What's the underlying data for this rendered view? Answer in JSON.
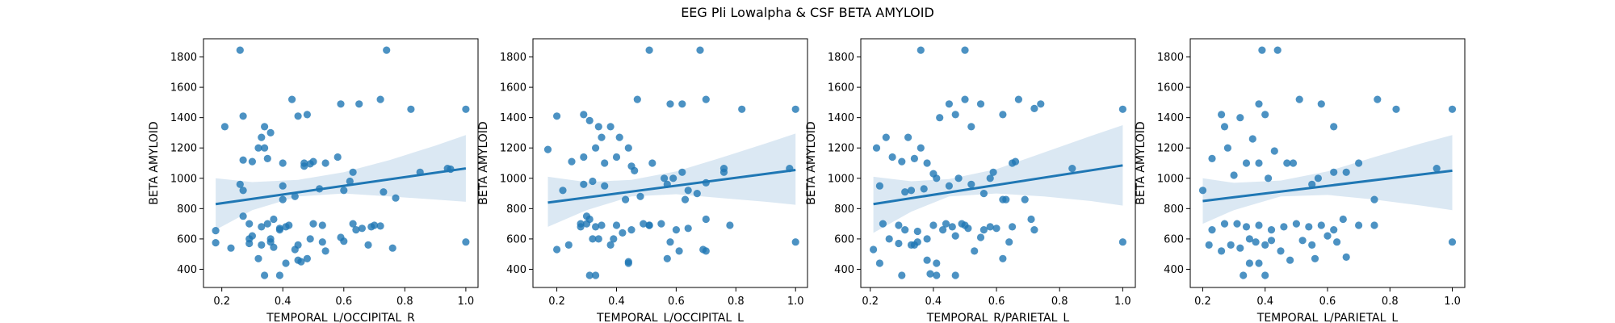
{
  "figure": {
    "title": "EEG Pli Lowalpha & CSF BETA AMYLOID",
    "point_color": "#1f77b4",
    "line_color": "#1f77b4",
    "band_color": "#a6c6e2"
  },
  "chart_data": [
    {
      "type": "scatter",
      "xlabel": "TEMPORAL_L/OCCIPITAL_R",
      "ylabel": "BETA AMYLOID",
      "xlim": [
        0.14,
        1.04
      ],
      "ylim": [
        280,
        1920
      ],
      "xticks": [
        0.2,
        0.4,
        0.6,
        0.8,
        1.0
      ],
      "yticks": [
        400,
        600,
        800,
        1000,
        1200,
        1400,
        1600,
        1800
      ],
      "grid": false,
      "regression": {
        "x": [
          0.18,
          1.0
        ],
        "y": [
          830,
          1065
        ]
      },
      "ci_band": {
        "x": [
          0.18,
          0.3,
          0.45,
          0.6,
          0.75,
          0.9,
          1.0
        ],
        "lower": [
          660,
          790,
          880,
          900,
          880,
          860,
          845
        ],
        "upper": [
          1000,
          975,
          990,
          1040,
          1120,
          1215,
          1285
        ]
      },
      "points": {
        "x": [
          0.26,
          0.74,
          0.43,
          0.72,
          0.59,
          0.65,
          0.82,
          1.0,
          0.27,
          0.45,
          0.48,
          0.21,
          0.34,
          0.36,
          0.33,
          0.34,
          0.27,
          0.3,
          0.32,
          0.35,
          0.4,
          0.47,
          0.49,
          0.5,
          0.58,
          0.47,
          0.26,
          0.27,
          0.4,
          0.4,
          0.44,
          0.52,
          0.54,
          0.6,
          0.63,
          0.73,
          0.77,
          0.85,
          0.94,
          0.95,
          0.62,
          0.27,
          0.29,
          0.35,
          0.37,
          0.33,
          0.39,
          0.42,
          0.5,
          0.53,
          0.63,
          0.66,
          0.69,
          0.72,
          0.29,
          0.36,
          0.39,
          0.41,
          0.45,
          0.49,
          0.53,
          0.6,
          0.64,
          0.7,
          0.18,
          0.23,
          0.29,
          0.33,
          0.36,
          0.37,
          0.44,
          0.46,
          0.48,
          0.54,
          0.59,
          0.68,
          0.76,
          1.0,
          0.34,
          0.32,
          0.39,
          0.41,
          0.45,
          0.18,
          0.3
        ],
        "y": [
          1845,
          1845,
          1520,
          1520,
          1490,
          1490,
          1455,
          1455,
          1410,
          1410,
          1420,
          1340,
          1340,
          1300,
          1270,
          1200,
          1120,
          1110,
          1200,
          1130,
          1100,
          1100,
          1095,
          1110,
          1140,
          1080,
          960,
          920,
          950,
          860,
          880,
          930,
          1100,
          920,
          1040,
          910,
          870,
          1040,
          1065,
          1060,
          980,
          750,
          700,
          700,
          730,
          680,
          670,
          690,
          700,
          690,
          700,
          670,
          680,
          685,
          600,
          580,
          660,
          680,
          560,
          600,
          580,
          585,
          660,
          690,
          655,
          540,
          570,
          560,
          600,
          545,
          530,
          450,
          470,
          520,
          610,
          560,
          540,
          580,
          360,
          470,
          360,
          440,
          460,
          575,
          620
        ]
      }
    },
    {
      "type": "scatter",
      "xlabel": "TEMPORAL_L/OCCIPITAL_L",
      "ylabel": "BETA AMYLOID",
      "xlim": [
        0.12,
        1.04
      ],
      "ylim": [
        280,
        1920
      ],
      "xticks": [
        0.2,
        0.4,
        0.6,
        0.8,
        1.0
      ],
      "yticks": [
        400,
        600,
        800,
        1000,
        1200,
        1400,
        1600,
        1800
      ],
      "grid": false,
      "regression": {
        "x": [
          0.17,
          1.0
        ],
        "y": [
          840,
          1055
        ]
      },
      "ci_band": {
        "x": [
          0.17,
          0.3,
          0.45,
          0.6,
          0.75,
          0.9,
          1.0
        ],
        "lower": [
          680,
          790,
          880,
          895,
          870,
          845,
          825
        ],
        "upper": [
          1010,
          975,
          990,
          1045,
          1135,
          1230,
          1295
        ]
      },
      "points": {
        "x": [
          0.51,
          0.68,
          0.17,
          0.2,
          0.29,
          0.31,
          0.34,
          0.35,
          0.38,
          0.41,
          0.44,
          0.47,
          0.58,
          0.62,
          0.7,
          0.82,
          1.0,
          0.22,
          0.25,
          0.29,
          0.33,
          0.36,
          0.4,
          0.45,
          0.46,
          0.52,
          0.57,
          0.62,
          0.64,
          0.7,
          0.76,
          0.76,
          0.98,
          0.29,
          0.32,
          0.36,
          0.43,
          0.48,
          0.56,
          0.59,
          0.63,
          0.67,
          0.28,
          0.3,
          0.31,
          0.33,
          0.35,
          0.39,
          0.4,
          0.45,
          0.49,
          0.51,
          0.55,
          0.6,
          0.64,
          0.7,
          0.78,
          0.2,
          0.24,
          0.28,
          0.3,
          0.34,
          0.38,
          0.42,
          0.44,
          0.51,
          0.57,
          0.61,
          0.69,
          1.0,
          0.31,
          0.33,
          0.44,
          0.58,
          0.7,
          0.32
        ],
        "y": [
          1845,
          1845,
          1190,
          1410,
          1420,
          1380,
          1340,
          1270,
          1340,
          1270,
          1200,
          1520,
          1490,
          1490,
          1520,
          1455,
          1455,
          920,
          1110,
          1140,
          1200,
          1100,
          1140,
          1080,
          1050,
          1100,
          960,
          1040,
          920,
          970,
          1040,
          1065,
          1065,
          960,
          980,
          950,
          860,
          880,
          1000,
          1000,
          860,
          900,
          700,
          750,
          730,
          680,
          690,
          600,
          690,
          660,
          700,
          690,
          700,
          660,
          670,
          730,
          690,
          530,
          560,
          680,
          700,
          600,
          560,
          640,
          450,
          690,
          470,
          520,
          530,
          580,
          360,
          360,
          440,
          580,
          520,
          600
        ]
      }
    },
    {
      "type": "scatter",
      "xlabel": "TEMPORAL_R/PARIETAL_L",
      "ylabel": "BETA AMYLOID",
      "xlim": [
        0.17,
        1.04
      ],
      "ylim": [
        280,
        1920
      ],
      "xticks": [
        0.2,
        0.4,
        0.6,
        0.8,
        1.0
      ],
      "yticks": [
        400,
        600,
        800,
        1000,
        1200,
        1400,
        1600,
        1800
      ],
      "grid": false,
      "regression": {
        "x": [
          0.21,
          1.0
        ],
        "y": [
          830,
          1085
        ]
      },
      "ci_band": {
        "x": [
          0.21,
          0.33,
          0.45,
          0.6,
          0.75,
          0.9,
          1.0
        ],
        "lower": [
          640,
          780,
          880,
          900,
          880,
          850,
          820
        ],
        "upper": [
          1010,
          980,
          995,
          1060,
          1170,
          1280,
          1350
        ]
      },
      "points": {
        "x": [
          0.36,
          0.5,
          0.22,
          0.25,
          0.27,
          0.3,
          0.32,
          0.34,
          0.36,
          0.38,
          0.4,
          0.42,
          0.45,
          0.47,
          0.5,
          0.52,
          0.55,
          0.58,
          0.62,
          0.67,
          0.72,
          0.74,
          1.0,
          0.23,
          0.31,
          0.33,
          0.37,
          0.41,
          0.45,
          0.48,
          0.52,
          0.56,
          0.59,
          0.63,
          0.65,
          0.66,
          0.84,
          0.24,
          0.29,
          0.33,
          0.35,
          0.38,
          0.4,
          0.43,
          0.46,
          0.49,
          0.51,
          0.55,
          0.58,
          0.62,
          0.65,
          0.71,
          0.21,
          0.26,
          0.29,
          0.31,
          0.35,
          0.38,
          0.41,
          0.44,
          0.47,
          0.5,
          0.53,
          0.56,
          0.6,
          0.64,
          0.69,
          0.72,
          1.0,
          0.23,
          0.3,
          0.34,
          0.39,
          0.41,
          0.47,
          0.62
        ],
        "y": [
          1845,
          1845,
          1200,
          1270,
          1140,
          1110,
          1270,
          1130,
          1200,
          1100,
          1030,
          1400,
          1490,
          1420,
          1520,
          1340,
          1490,
          1000,
          1420,
          1520,
          1460,
          1490,
          1455,
          950,
          910,
          920,
          930,
          1000,
          950,
          1000,
          960,
          900,
          1040,
          860,
          1100,
          1110,
          1065,
          700,
          690,
          560,
          650,
          600,
          690,
          660,
          680,
          700,
          670,
          610,
          680,
          860,
          680,
          730,
          530,
          600,
          570,
          660,
          580,
          460,
          440,
          700,
          620,
          690,
          520,
          660,
          670,
          580,
          860,
          660,
          580,
          440,
          360,
          560,
          370,
          360,
          360,
          470
        ]
      }
    },
    {
      "type": "scatter",
      "xlabel": "TEMPORAL_L/PARIETAL_L",
      "ylabel": "BETA AMYLOID",
      "xlim": [
        0.16,
        1.04
      ],
      "ylim": [
        280,
        1920
      ],
      "xticks": [
        0.2,
        0.4,
        0.6,
        0.8,
        1.0
      ],
      "yticks": [
        400,
        600,
        800,
        1000,
        1200,
        1400,
        1600,
        1800
      ],
      "grid": false,
      "regression": {
        "x": [
          0.2,
          1.0
        ],
        "y": [
          850,
          1050
        ]
      },
      "ci_band": {
        "x": [
          0.2,
          0.3,
          0.45,
          0.6,
          0.75,
          0.9,
          1.0
        ],
        "lower": [
          700,
          790,
          880,
          890,
          860,
          820,
          790
        ],
        "upper": [
          1000,
          970,
          985,
          1045,
          1140,
          1230,
          1285
        ]
      },
      "points": {
        "x": [
          0.39,
          0.44,
          0.26,
          0.27,
          0.32,
          0.36,
          0.38,
          0.4,
          0.51,
          0.58,
          0.62,
          0.76,
          0.82,
          1.0,
          0.2,
          0.23,
          0.28,
          0.3,
          0.34,
          0.38,
          0.41,
          0.43,
          0.47,
          0.49,
          0.55,
          0.57,
          0.62,
          0.66,
          0.7,
          0.75,
          0.95,
          0.23,
          0.27,
          0.31,
          0.34,
          0.38,
          0.42,
          0.46,
          0.5,
          0.54,
          0.58,
          0.62,
          0.65,
          0.7,
          0.75,
          0.22,
          0.26,
          0.29,
          0.32,
          0.35,
          0.37,
          0.4,
          0.42,
          0.45,
          0.48,
          0.52,
          0.55,
          0.6,
          0.63,
          0.66,
          1.0,
          0.33,
          0.38,
          0.4,
          0.56,
          0.35
        ],
        "y": [
          1845,
          1845,
          1420,
          1340,
          1400,
          1260,
          1490,
          1420,
          1520,
          1490,
          1340,
          1520,
          1455,
          1455,
          920,
          1130,
          1200,
          1020,
          1100,
          1100,
          1000,
          1180,
          1100,
          1100,
          960,
          1000,
          1040,
          1040,
          1100,
          860,
          1065,
          660,
          700,
          700,
          680,
          690,
          660,
          680,
          700,
          680,
          690,
          660,
          730,
          690,
          690,
          560,
          520,
          560,
          540,
          600,
          580,
          560,
          590,
          520,
          460,
          590,
          560,
          620,
          580,
          480,
          580,
          360,
          440,
          360,
          470,
          440
        ]
      }
    }
  ]
}
